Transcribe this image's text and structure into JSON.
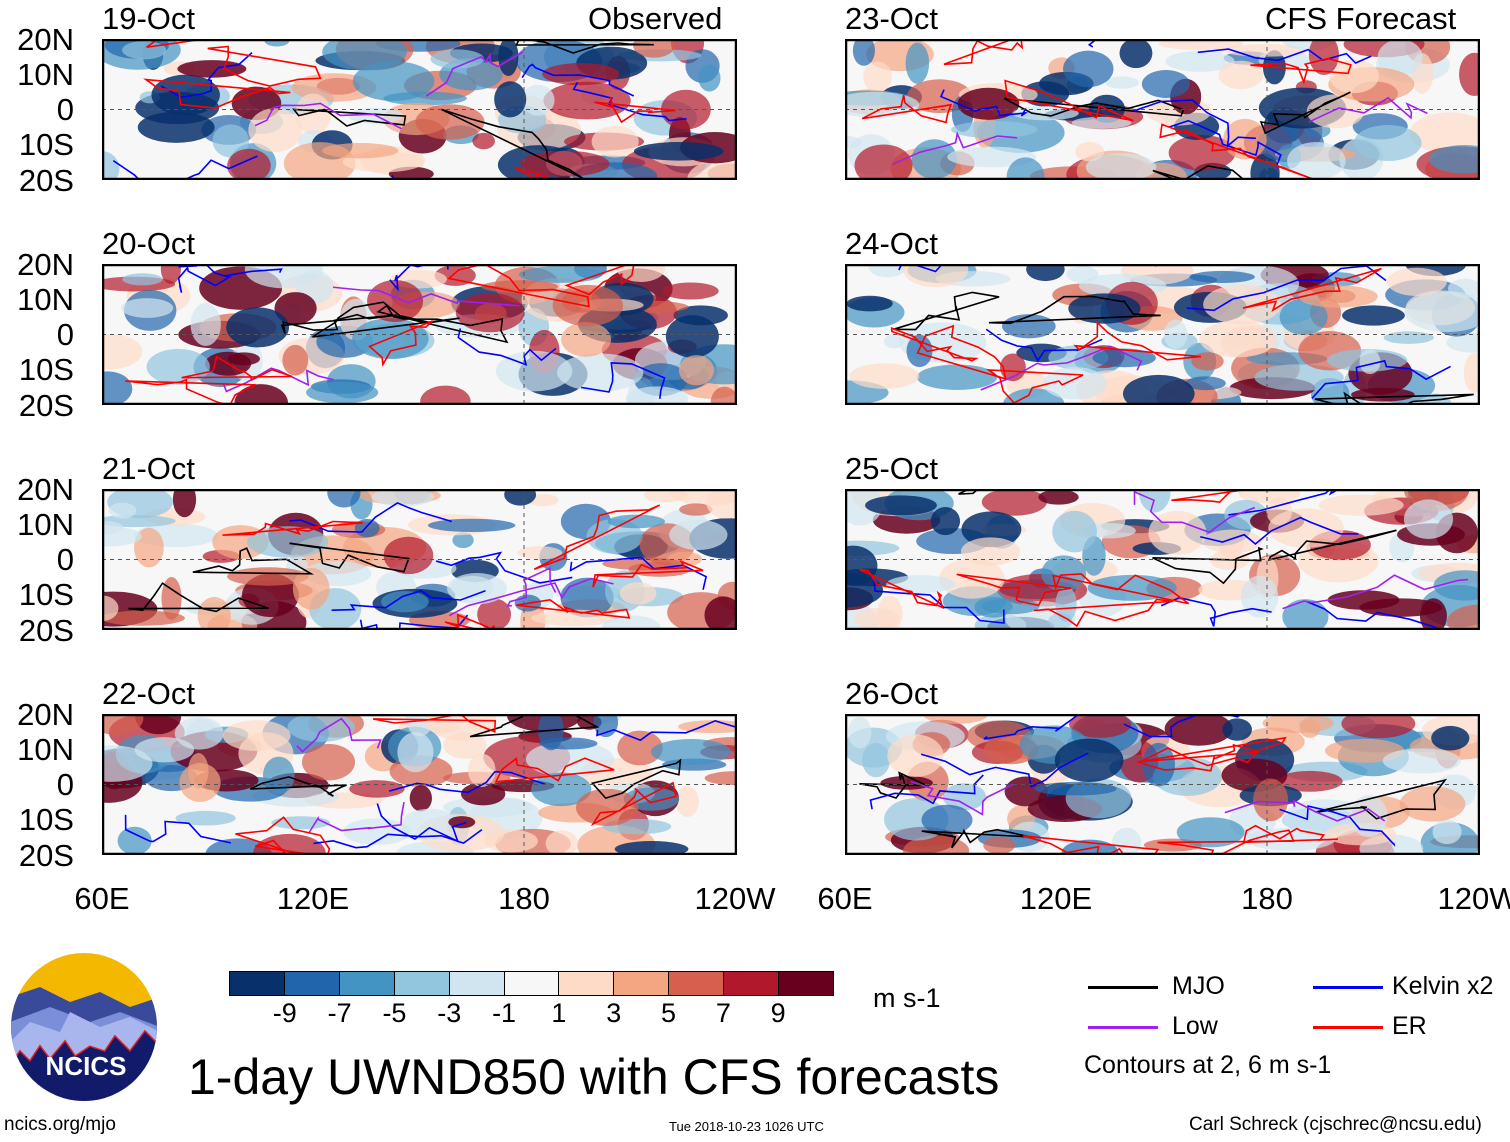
{
  "headers": {
    "left": "Observed",
    "right": "CFS Forecast"
  },
  "panels_left": [
    "19-Oct",
    "20-Oct",
    "21-Oct",
    "22-Oct"
  ],
  "panels_right": [
    "23-Oct",
    "24-Oct",
    "25-Oct",
    "26-Oct"
  ],
  "lat_labels": [
    "20N",
    "10N",
    "0",
    "10S",
    "20S"
  ],
  "lon_labels": [
    "60E",
    "120E",
    "180",
    "120W"
  ],
  "colorbar": {
    "colors": [
      "#08306b",
      "#2166ac",
      "#4393c3",
      "#92c5de",
      "#d1e5f0",
      "#f7f7f7",
      "#fddbc7",
      "#f4a582",
      "#d6604d",
      "#b2182b",
      "#67001f"
    ],
    "tick_labels": [
      "-9",
      "-7",
      "-5",
      "-3",
      "-1",
      "1",
      "3",
      "5",
      "7",
      "9"
    ],
    "units": "m s-1"
  },
  "legend": {
    "items": [
      {
        "label": "MJO",
        "color": "#000000"
      },
      {
        "label": "Kelvin x2",
        "color": "#0000ff"
      },
      {
        "label": "Low",
        "color": "#a020f0"
      },
      {
        "label": "ER",
        "color": "#ff0000"
      }
    ],
    "contours_note": "Contours at 2, 6 m s-1"
  },
  "title": "1-day UWND850 with CFS forecasts",
  "logo_text": "NCICS",
  "footer": {
    "url": "ncics.org/mjo",
    "timestamp": "Tue 2018-10-23 1026 UTC",
    "credit": "Carl Schreck (cjschrec@ncsu.edu)"
  }
}
